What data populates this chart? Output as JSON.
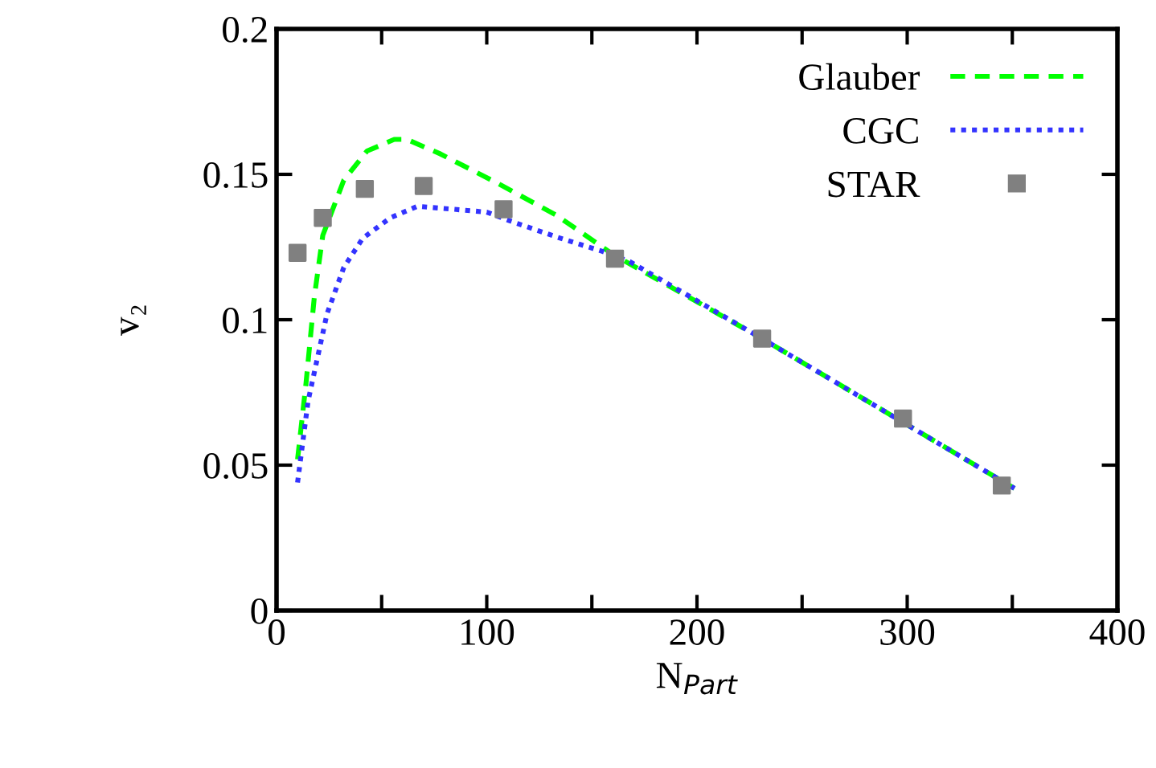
{
  "chart_data": {
    "type": "line",
    "xlabel": "N$_{Part}$",
    "ylabel": "v₂",
    "xlim": [
      0,
      400
    ],
    "ylim": [
      0,
      0.2
    ],
    "xticks": [
      0,
      {
        "value": 50,
        "label": null
      },
      100,
      {
        "value": 150,
        "label": null
      },
      200,
      {
        "value": 250,
        "label": null
      },
      300,
      {
        "value": 350,
        "label": null
      },
      400
    ],
    "yticks": [
      0,
      0.05,
      0.1,
      0.15,
      0.2
    ],
    "legend": "top right",
    "grid": false,
    "series": [
      {
        "name": "Glauber",
        "color": "#00ff00",
        "line_style": "dashed",
        "marker": "none",
        "x": [
          10,
          14,
          18,
          22,
          32,
          43,
          56,
          62,
          78,
          105,
          133,
          160,
          231,
          351
        ],
        "values": [
          0.052,
          0.078,
          0.108,
          0.129,
          0.148,
          0.158,
          0.162,
          0.162,
          0.157,
          0.147,
          0.136,
          0.1225,
          0.0935,
          0.042
        ]
      },
      {
        "name": "CGC",
        "color": "#3333ff",
        "line_style": "dotted",
        "marker": "none",
        "x": [
          10,
          15,
          24,
          32,
          41,
          54,
          67,
          84,
          100,
          111,
          133,
          155,
          168,
          231,
          351
        ],
        "values": [
          0.044,
          0.072,
          0.102,
          0.118,
          0.128,
          0.135,
          0.139,
          0.138,
          0.137,
          0.134,
          0.1285,
          0.1235,
          0.12,
          0.0935,
          0.042
        ]
      },
      {
        "name": "STAR",
        "type": "scatter",
        "color": "#808080",
        "marker": "square",
        "x": [
          10,
          22,
          42,
          70,
          108,
          161,
          231,
          298,
          345
        ],
        "values": [
          0.123,
          0.135,
          0.145,
          0.146,
          0.138,
          0.121,
          0.0935,
          0.066,
          0.043
        ]
      }
    ]
  }
}
